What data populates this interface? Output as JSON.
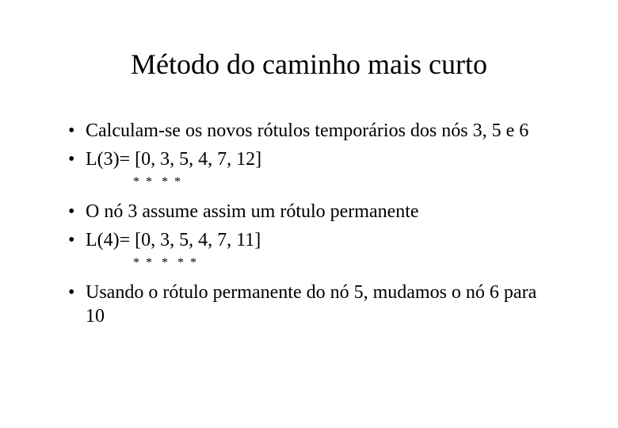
{
  "title": "Método do caminho mais curto",
  "bullets": {
    "b1": "Calculam-se os novos rótulos temporários dos nós 3, 5 e 6",
    "b2": "L(3)= [0, 3, 5, 4, 7, 12]",
    "b3": "O nó 3 assume assim um rótulo permanente",
    "b4": "L(4)= [0, 3, 5, 4, 7, 11]",
    "b5": "Usando  o rótulo permanente do nó 5, mudamos o nó 6 para 10"
  },
  "asterisks": {
    "row1": "               *  *   *  *",
    "row2": "               *  *   *   *  *"
  },
  "colors": {
    "background": "#ffffff",
    "text": "#000000"
  },
  "typography": {
    "title_fontsize": 36,
    "body_fontsize": 24,
    "asterisk_fontsize": 16,
    "font_family": "Times New Roman"
  }
}
